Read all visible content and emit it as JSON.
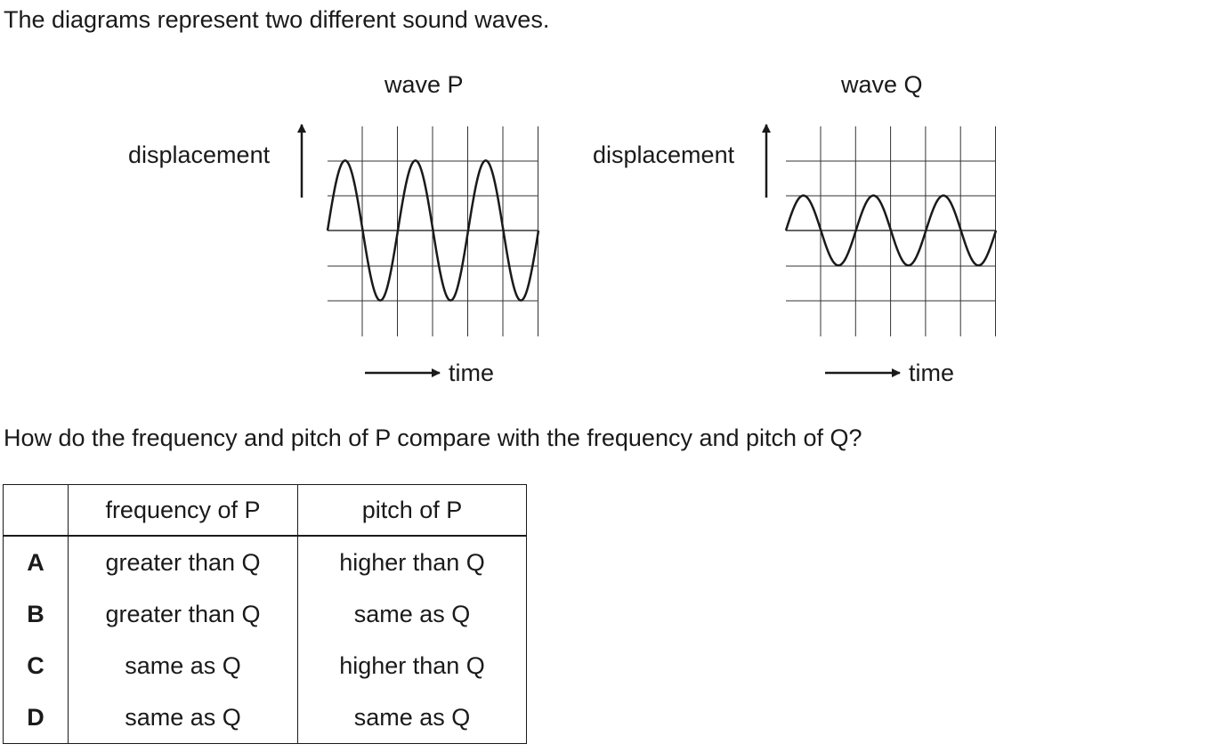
{
  "intro": "The diagrams represent two different sound waves.",
  "question": "How do the frequency and pitch of P compare with the frequency and pitch of Q?",
  "waves": [
    {
      "title": "wave P",
      "y_label": "displacement",
      "x_label": "time",
      "amplitude_grid_units": 2,
      "cycles": 3,
      "grid_columns": 6,
      "grid_rows": 4
    },
    {
      "title": "wave Q",
      "y_label": "displacement",
      "x_label": "time",
      "amplitude_grid_units": 1,
      "cycles": 3,
      "grid_columns": 6,
      "grid_rows": 4
    }
  ],
  "table": {
    "headers": [
      "",
      "frequency of P",
      "pitch of P"
    ],
    "rows": [
      {
        "letter": "A",
        "frequency": "greater than Q",
        "pitch": "higher than Q"
      },
      {
        "letter": "B",
        "frequency": "greater than Q",
        "pitch": "same as Q"
      },
      {
        "letter": "C",
        "frequency": "same as Q",
        "pitch": "higher than Q"
      },
      {
        "letter": "D",
        "frequency": "same as Q",
        "pitch": "same as Q"
      }
    ]
  }
}
